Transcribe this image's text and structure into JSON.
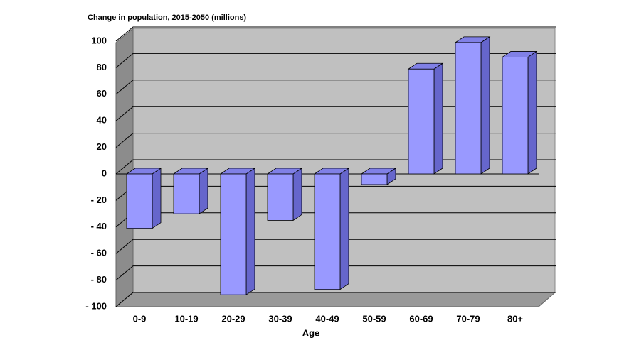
{
  "chart_data": {
    "type": "bar3d",
    "title": "Change in population, 2015-2050  (millions)",
    "x_label": "Age",
    "categories": [
      "0-9",
      "10-19",
      "20-29",
      "30-39",
      "40-49",
      "50-59",
      "60-69",
      "70-79",
      "80+"
    ],
    "values": [
      -41,
      -30,
      -91,
      -35,
      -87,
      -8,
      79,
      99,
      88
    ],
    "color": "#9999ff",
    "ylim": [
      -100,
      100
    ],
    "yticks": [
      {
        "value": -100,
        "label": "- 100"
      },
      {
        "value": -80,
        "label": "- 80"
      },
      {
        "value": -60,
        "label": "- 60"
      },
      {
        "value": -40,
        "label": "- 40"
      },
      {
        "value": -20,
        "label": "- 20"
      },
      0,
      20,
      40,
      60,
      80,
      100
    ],
    "grid": true
  }
}
